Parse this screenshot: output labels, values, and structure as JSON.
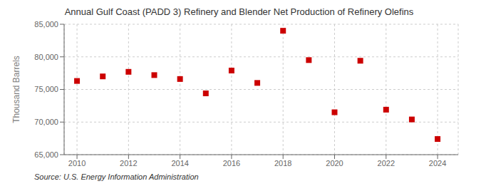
{
  "chart_data": {
    "type": "scatter",
    "title": "Annual Gulf Coast (PADD 3) Refinery and Blender Net Production of Refinery Olefins",
    "y_label": "Thousand Barrels",
    "annotations": [
      "Source: U.S. Energy Information Administration"
    ],
    "x": [
      2010,
      2011,
      2012,
      2013,
      2014,
      2015,
      2016,
      2017,
      2018,
      2019,
      2020,
      2021,
      2022,
      2023,
      2024
    ],
    "values": [
      76300,
      77000,
      77700,
      77200,
      76600,
      74400,
      77900,
      76000,
      84000,
      79500,
      71500,
      79400,
      71900,
      70400,
      67400
    ],
    "color": "#cc0000",
    "marker": "square",
    "xlim": [
      2009.5,
      2024.8
    ],
    "xticks": [
      2010,
      2012,
      2014,
      2016,
      2018,
      2020,
      2022,
      2024
    ],
    "ylim": [
      65000,
      85000
    ],
    "yticks": [
      {
        "value": 65000,
        "label": "65,000"
      },
      {
        "value": 70000,
        "label": "70,000"
      },
      {
        "value": 75000,
        "label": "75,000"
      },
      {
        "value": 80000,
        "label": "80,000"
      },
      {
        "value": 85000,
        "label": "85,000"
      }
    ],
    "grid": true
  }
}
